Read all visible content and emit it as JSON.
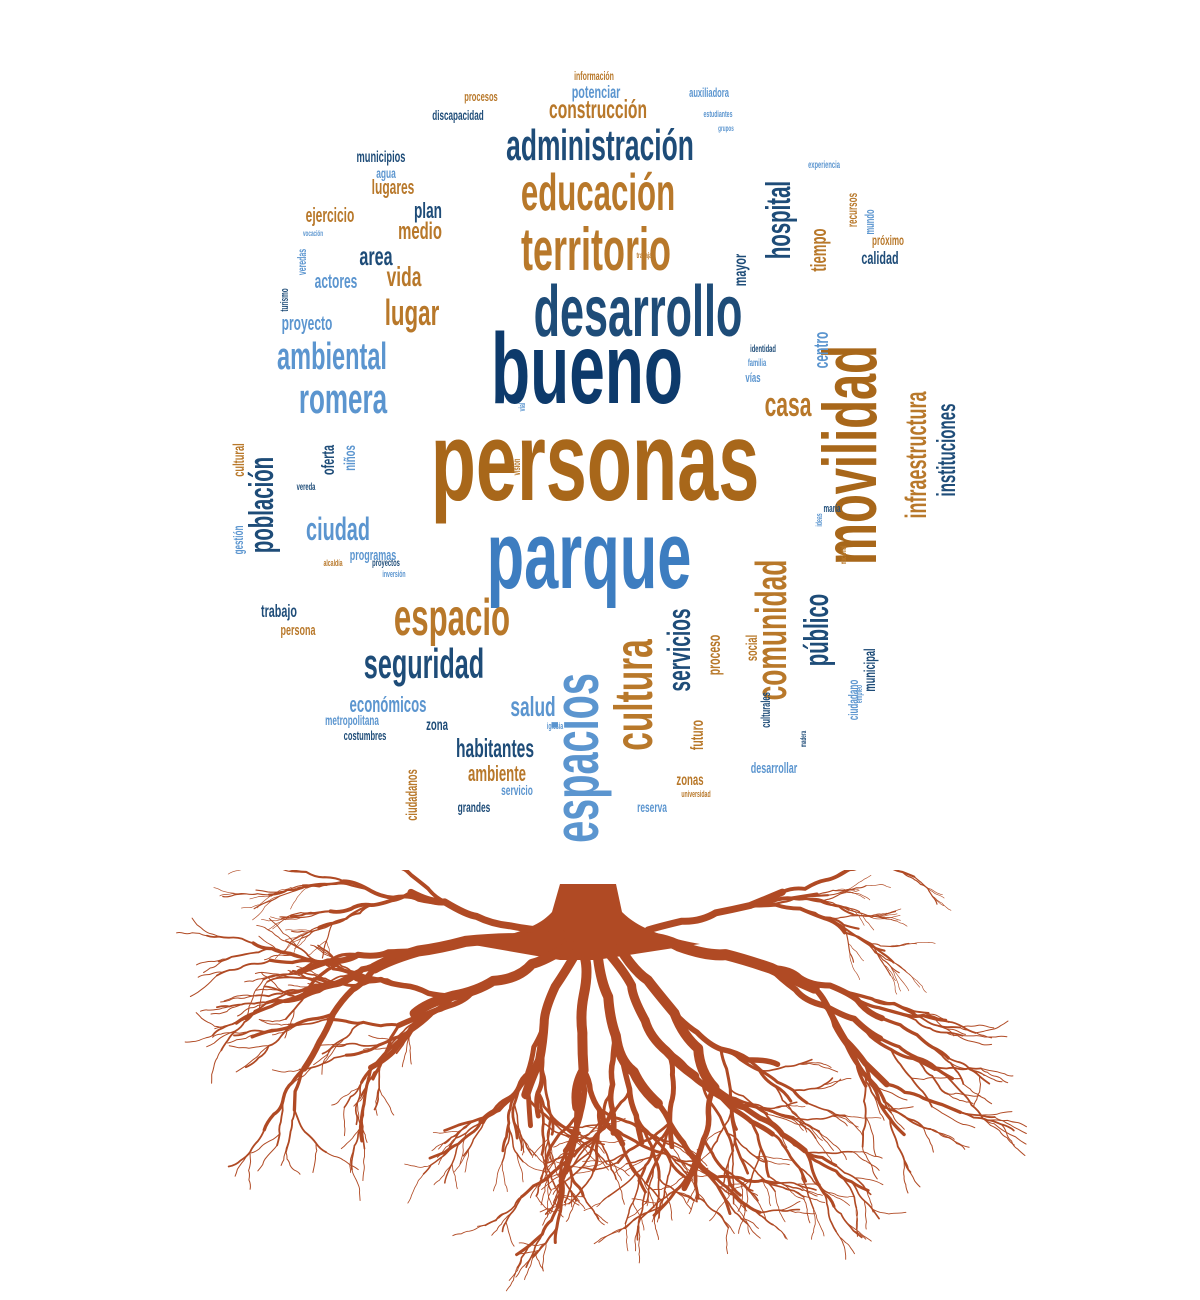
{
  "colors": {
    "dark_blue": "#1e4c78",
    "navy": "#0d3a6b",
    "mid_blue": "#3d7dc0",
    "light_blue": "#5b95cf",
    "gold": "#b8782a",
    "bronze": "#a8671a",
    "root": "#b04a24",
    "background": "#ffffff"
  },
  "roots": {
    "color": "#b04a24"
  },
  "words": [
    {
      "text": "personas",
      "color": "bronze"
    },
    {
      "text": "bueno",
      "color": "navy"
    },
    {
      "text": "parque",
      "color": "mid_blue"
    },
    {
      "text": "desarrollo",
      "color": "dark_blue"
    },
    {
      "text": "movilidad",
      "color": "bronze"
    },
    {
      "text": "espacios",
      "color": "light_blue"
    },
    {
      "text": "territorio",
      "color": "gold"
    },
    {
      "text": "educación",
      "color": "gold"
    },
    {
      "text": "administración",
      "color": "dark_blue"
    },
    {
      "text": "cultura",
      "color": "gold"
    },
    {
      "text": "comunidad",
      "color": "gold"
    },
    {
      "text": "espacio",
      "color": "gold"
    },
    {
      "text": "seguridad",
      "color": "dark_blue"
    },
    {
      "text": "romera",
      "color": "light_blue"
    },
    {
      "text": "ambiental",
      "color": "light_blue"
    },
    {
      "text": "hospital",
      "color": "dark_blue"
    },
    {
      "text": "infraestructura",
      "color": "gold"
    },
    {
      "text": "instituciones",
      "color": "dark_blue"
    },
    {
      "text": "público",
      "color": "dark_blue"
    },
    {
      "text": "población",
      "color": "dark_blue"
    },
    {
      "text": "servicios",
      "color": "dark_blue"
    },
    {
      "text": "lugar",
      "color": "gold"
    },
    {
      "text": "casa",
      "color": "gold"
    },
    {
      "text": "ciudad",
      "color": "light_blue"
    },
    {
      "text": "construcción",
      "color": "gold"
    },
    {
      "text": "salud",
      "color": "light_blue"
    },
    {
      "text": "habitantes",
      "color": "dark_blue"
    },
    {
      "text": "económicos",
      "color": "light_blue"
    },
    {
      "text": "ambiente",
      "color": "gold"
    },
    {
      "text": "vida",
      "color": "gold"
    },
    {
      "text": "area",
      "color": "dark_blue"
    },
    {
      "text": "medio",
      "color": "gold"
    },
    {
      "text": "plan",
      "color": "dark_blue"
    },
    {
      "text": "lugares",
      "color": "gold"
    },
    {
      "text": "ejercicio",
      "color": "gold"
    },
    {
      "text": "actores",
      "color": "light_blue"
    },
    {
      "text": "proyecto",
      "color": "light_blue"
    },
    {
      "text": "potenciar",
      "color": "light_blue"
    },
    {
      "text": "municipios",
      "color": "dark_blue"
    },
    {
      "text": "agua",
      "color": "light_blue"
    },
    {
      "text": "discapacidad",
      "color": "dark_blue"
    },
    {
      "text": "procesos",
      "color": "gold"
    },
    {
      "text": "información",
      "color": "gold"
    },
    {
      "text": "auxiliadora",
      "color": "light_blue"
    },
    {
      "text": "tiempo",
      "color": "gold"
    },
    {
      "text": "centro",
      "color": "light_blue"
    },
    {
      "text": "mayor",
      "color": "dark_blue"
    },
    {
      "text": "calidad",
      "color": "dark_blue"
    },
    {
      "text": "recursos",
      "color": "gold"
    },
    {
      "text": "mundo",
      "color": "light_blue"
    },
    {
      "text": "próximo",
      "color": "gold"
    },
    {
      "text": "trabajo",
      "color": "dark_blue"
    },
    {
      "text": "persona",
      "color": "gold"
    },
    {
      "text": "programas",
      "color": "light_blue"
    },
    {
      "text": "niños",
      "color": "light_blue"
    },
    {
      "text": "oferta",
      "color": "dark_blue"
    },
    {
      "text": "cultural",
      "color": "gold"
    },
    {
      "text": "gestión",
      "color": "light_blue"
    },
    {
      "text": "zona",
      "color": "dark_blue"
    },
    {
      "text": "metropolitana",
      "color": "light_blue"
    },
    {
      "text": "costumbres",
      "color": "dark_blue"
    },
    {
      "text": "ciudadanos",
      "color": "gold"
    },
    {
      "text": "grandes",
      "color": "dark_blue"
    },
    {
      "text": "servicio",
      "color": "light_blue"
    },
    {
      "text": "zonas",
      "color": "gold"
    },
    {
      "text": "reserva",
      "color": "light_blue"
    },
    {
      "text": "desarrollar",
      "color": "light_blue"
    },
    {
      "text": "futuro",
      "color": "gold"
    },
    {
      "text": "proceso",
      "color": "gold"
    },
    {
      "text": "social",
      "color": "gold"
    },
    {
      "text": "culturales",
      "color": "dark_blue"
    },
    {
      "text": "ciudadano",
      "color": "light_blue"
    },
    {
      "text": "municipal",
      "color": "dark_blue"
    },
    {
      "text": "vías",
      "color": "light_blue"
    },
    {
      "text": "identidad",
      "color": "dark_blue"
    },
    {
      "text": "familia",
      "color": "light_blue"
    },
    {
      "text": "veredas",
      "color": "light_blue"
    },
    {
      "text": "turismo",
      "color": "dark_blue"
    },
    {
      "text": "estudiantes",
      "color": "light_blue"
    },
    {
      "text": "experiencia",
      "color": "light_blue"
    },
    {
      "text": "universidad",
      "color": "gold"
    },
    {
      "text": "iglesia",
      "color": "light_blue"
    },
    {
      "text": "inversión",
      "color": "light_blue"
    },
    {
      "text": "alcaldía",
      "color": "gold"
    },
    {
      "text": "proyectos",
      "color": "dark_blue"
    },
    {
      "text": "empleo",
      "color": "light_blue"
    },
    {
      "text": "maría",
      "color": "dark_blue"
    },
    {
      "text": "visión",
      "color": "gold"
    },
    {
      "text": "vereda",
      "color": "dark_blue"
    },
    {
      "text": "vocación",
      "color": "light_blue"
    },
    {
      "text": "trabajar",
      "color": "gold"
    },
    {
      "text": "grupos",
      "color": "light_blue"
    },
    {
      "text": "madera",
      "color": "dark_blue"
    },
    {
      "text": "nacional",
      "color": "gold"
    },
    {
      "text": "ideas",
      "color": "light_blue"
    },
    {
      "text": "vial",
      "color": "light_blue"
    }
  ]
}
